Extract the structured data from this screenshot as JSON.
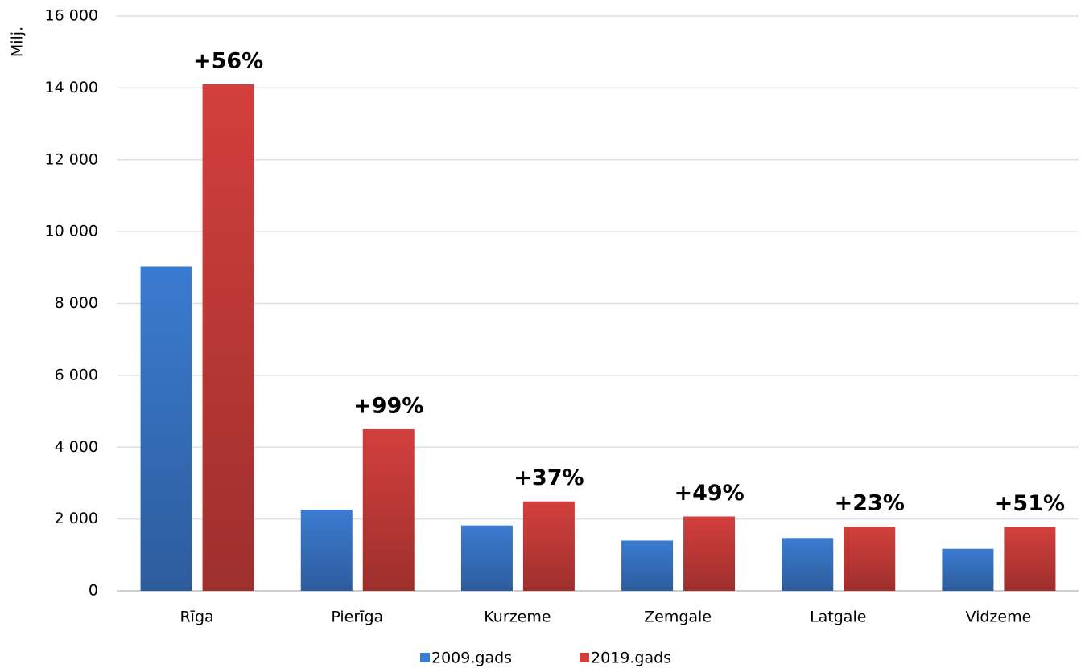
{
  "chart_data": {
    "type": "bar",
    "y_axis_label": "Milj.",
    "categories": [
      "Rīga",
      "Pierīga",
      "Kurzeme",
      "Zemgale",
      "Latgale",
      "Vidzeme"
    ],
    "series": [
      {
        "name": "2009.gads",
        "color": "#3b7bd0",
        "values": [
          9030,
          2260,
          1820,
          1400,
          1470,
          1170
        ]
      },
      {
        "name": "2019.gads",
        "color": "#d23f3c",
        "values": [
          14100,
          4500,
          2490,
          2070,
          1790,
          1780
        ]
      }
    ],
    "annotations": [
      "+56%",
      "+99%",
      "+37%",
      "+49%",
      "+23%",
      "+51%"
    ],
    "ylim": [
      0,
      16000
    ],
    "yticks": [
      0,
      {
        "value": 2000,
        "label": "2 000"
      },
      {
        "value": 4000,
        "label": "4 000"
      },
      {
        "value": 6000,
        "label": "6 000"
      },
      {
        "value": 8000,
        "label": "8 000"
      },
      {
        "value": 10000,
        "label": "10 000"
      },
      {
        "value": 12000,
        "label": "12 000"
      },
      {
        "value": 14000,
        "label": "14 000"
      },
      {
        "value": 16000,
        "label": "16 000"
      }
    ],
    "grid": true,
    "legend": "bottom"
  }
}
